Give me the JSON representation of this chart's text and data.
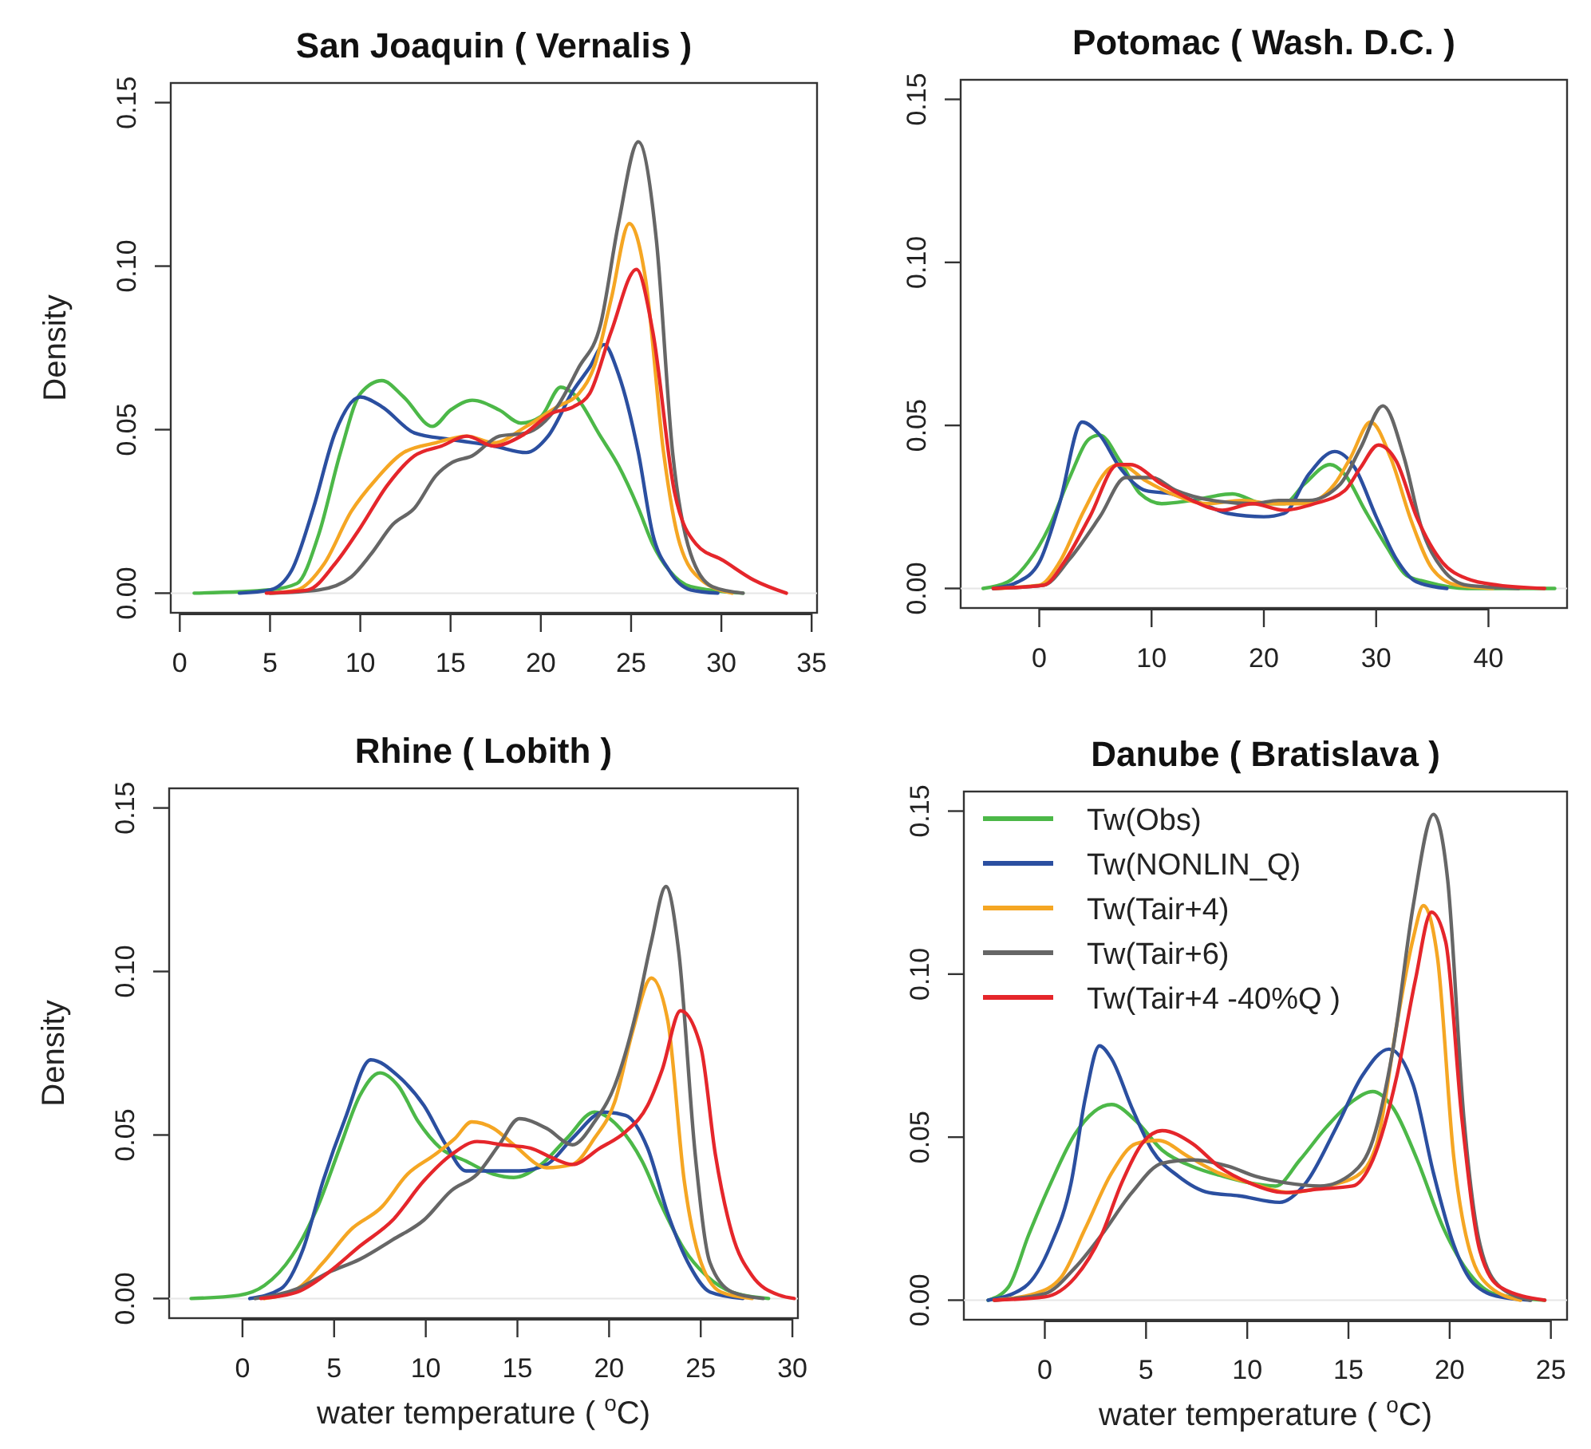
{
  "chart_data": [
    {
      "type": "line",
      "title": "San Joaquin ( Vernalis )",
      "ylabel": "Density",
      "xlim": [
        -0.5,
        35.3
      ],
      "ylim": [
        -0.006,
        0.156
      ],
      "xticks": [
        0,
        5,
        10,
        15,
        20,
        25,
        30,
        35
      ],
      "yticks": [
        {
          "value": 0,
          "label": "0.00"
        },
        {
          "value": 0.05,
          "label": "0.05"
        },
        {
          "value": 0.1,
          "label": "0.10"
        },
        {
          "value": 0.15,
          "label": "0.15"
        }
      ],
      "grid": false,
      "legend": false,
      "line_style": "solid",
      "ref_lines": [
        {
          "axis": "y",
          "value": 0,
          "color": "#e6e6e6"
        }
      ],
      "series": [
        {
          "color": "#4cb848",
          "x": [
            0.8,
            5,
            6.5,
            7.7,
            8.9,
            10,
            11.2,
            12.4,
            14,
            15,
            16.2,
            17.7,
            18.9,
            20,
            21.1,
            21.8,
            23.3,
            24.3,
            25.4,
            26.2,
            27.1,
            28.3,
            31.2
          ],
          "values": [
            0,
            0.001,
            0.003,
            0.018,
            0.043,
            0.061,
            0.065,
            0.06,
            0.051,
            0.056,
            0.059,
            0.056,
            0.052,
            0.054,
            0.063,
            0.061,
            0.048,
            0.039,
            0.026,
            0.015,
            0.007,
            0.002,
            0
          ]
        },
        {
          "color": "#2b4fa0",
          "x": [
            3.3,
            5,
            6.2,
            7.4,
            8.6,
            10,
            11.2,
            13,
            15,
            17.4,
            19.2,
            20.4,
            21.8,
            22.7,
            23.5,
            24.3,
            25.4,
            26.2,
            27.1,
            28.3,
            29.8
          ],
          "values": [
            0,
            0.001,
            0.007,
            0.026,
            0.049,
            0.06,
            0.057,
            0.049,
            0.047,
            0.045,
            0.043,
            0.048,
            0.062,
            0.069,
            0.076,
            0.067,
            0.043,
            0.018,
            0.007,
            0.001,
            0
          ]
        },
        {
          "color": "#f5a623",
          "x": [
            5,
            6.5,
            8,
            9.5,
            10.9,
            12.4,
            14.2,
            15.9,
            17.4,
            19.2,
            20.9,
            22.1,
            23,
            23.9,
            24.9,
            25.8,
            26.8,
            27.7,
            28.9,
            30.6
          ],
          "values": [
            0,
            0.001,
            0.009,
            0.025,
            0.035,
            0.043,
            0.046,
            0.048,
            0.046,
            0.051,
            0.057,
            0.061,
            0.07,
            0.09,
            0.113,
            0.096,
            0.043,
            0.015,
            0.004,
            0
          ]
        },
        {
          "color": "#666666",
          "x": [
            5,
            7.7,
            9.5,
            10.6,
            11.8,
            13,
            14.2,
            15.1,
            16.2,
            17.7,
            19.2,
            20.9,
            22.1,
            23.3,
            24.3,
            25.4,
            26.4,
            27.3,
            28.3,
            29.5,
            31.2
          ],
          "values": [
            0,
            0.001,
            0.005,
            0.012,
            0.021,
            0.026,
            0.036,
            0.04,
            0.042,
            0.048,
            0.049,
            0.057,
            0.069,
            0.082,
            0.113,
            0.138,
            0.108,
            0.043,
            0.012,
            0.002,
            0
          ]
        },
        {
          "color": "#e5262b",
          "x": [
            4.8,
            7.1,
            8.6,
            10,
            11.5,
            13,
            14.5,
            15.9,
            17.4,
            18.9,
            20.6,
            21.8,
            22.7,
            23.9,
            25.3,
            26.2,
            27.4,
            28.6,
            30.1,
            31.8,
            33.6
          ],
          "values": [
            0,
            0.001,
            0.009,
            0.02,
            0.033,
            0.042,
            0.045,
            0.048,
            0.045,
            0.048,
            0.055,
            0.057,
            0.061,
            0.08,
            0.099,
            0.08,
            0.031,
            0.015,
            0.01,
            0.004,
            0
          ]
        }
      ]
    },
    {
      "type": "line",
      "title": "Potomac ( Wash. D.C. )",
      "xlim": [
        -7,
        47
      ],
      "ylim": [
        -0.006,
        0.156
      ],
      "xticks": [
        0,
        10,
        20,
        30,
        40
      ],
      "yticks": [
        {
          "value": 0,
          "label": "0.00"
        },
        {
          "value": 0.05,
          "label": "0.05"
        },
        {
          "value": 0.1,
          "label": "0.10"
        },
        {
          "value": 0.15,
          "label": "0.15"
        }
      ],
      "grid": false,
      "legend": false,
      "line_style": "solid",
      "ref_lines": [
        {
          "axis": "y",
          "value": 0,
          "color": "#e6e6e6"
        }
      ],
      "series": [
        {
          "color": "#4cb848",
          "x": [
            -5,
            -2.8,
            -1,
            0.9,
            2.7,
            4.5,
            5.4,
            7.2,
            9,
            10.9,
            13.6,
            17.2,
            20,
            21.8,
            23.6,
            25.9,
            27.2,
            29,
            30.9,
            32.7,
            34.5,
            38.1,
            45.9
          ],
          "values": [
            0,
            0.002,
            0.008,
            0.019,
            0.034,
            0.046,
            0.047,
            0.039,
            0.029,
            0.026,
            0.027,
            0.029,
            0.026,
            0.026,
            0.032,
            0.038,
            0.035,
            0.024,
            0.013,
            0.004,
            0.002,
            0,
            0
          ]
        },
        {
          "color": "#2b4fa0",
          "x": [
            -4.1,
            -1.9,
            0,
            1.8,
            3.8,
            5.4,
            7.2,
            9.5,
            11.8,
            14.5,
            16.8,
            20,
            21.8,
            24,
            26.3,
            28.1,
            30,
            31.8,
            33.6,
            36.3
          ],
          "values": [
            0,
            0.002,
            0.008,
            0.026,
            0.051,
            0.047,
            0.037,
            0.03,
            0.029,
            0.026,
            0.023,
            0.022,
            0.023,
            0.035,
            0.042,
            0.037,
            0.022,
            0.009,
            0.002,
            0
          ]
        },
        {
          "color": "#f5a623",
          "x": [
            -4.1,
            0,
            1.8,
            4,
            6.3,
            7.2,
            9.5,
            11.8,
            15,
            18.1,
            20.9,
            23.6,
            26.3,
            27.7,
            29.5,
            31.3,
            33.1,
            35,
            37.2,
            40.4
          ],
          "values": [
            0,
            0.001,
            0.008,
            0.024,
            0.037,
            0.038,
            0.033,
            0.029,
            0.026,
            0.027,
            0.026,
            0.026,
            0.032,
            0.04,
            0.051,
            0.04,
            0.021,
            0.006,
            0.001,
            0
          ]
        },
        {
          "color": "#666666",
          "x": [
            -4.1,
            0.4,
            2.7,
            5.4,
            7.7,
            10,
            12.2,
            15.4,
            19,
            21.3,
            24,
            26.8,
            28.6,
            30.6,
            32.5,
            34,
            35.9,
            38.1,
            42.7
          ],
          "values": [
            0,
            0.001,
            0.009,
            0.022,
            0.034,
            0.034,
            0.03,
            0.027,
            0.026,
            0.027,
            0.027,
            0.032,
            0.043,
            0.056,
            0.04,
            0.019,
            0.006,
            0.001,
            0
          ]
        },
        {
          "color": "#e5262b",
          "x": [
            -4.1,
            0.4,
            2.2,
            4.5,
            7,
            8.1,
            10.9,
            13.6,
            16.3,
            19,
            21.8,
            24.5,
            27.2,
            28.6,
            30.2,
            31.8,
            33.6,
            35.9,
            38.1,
            40.9,
            45
          ],
          "values": [
            0,
            0.001,
            0.008,
            0.022,
            0.038,
            0.038,
            0.032,
            0.027,
            0.024,
            0.026,
            0.024,
            0.026,
            0.03,
            0.037,
            0.044,
            0.039,
            0.022,
            0.008,
            0.003,
            0.001,
            0
          ]
        }
      ]
    },
    {
      "type": "line",
      "title": "Rhine ( Lobith )",
      "ylabel": "Density",
      "xlabel": "water temperature ( $^{o}$C)",
      "xlim": [
        -4,
        30.3
      ],
      "ylim": [
        -0.006,
        0.156
      ],
      "xticks": [
        0,
        5,
        10,
        15,
        20,
        25,
        30
      ],
      "yticks": [
        {
          "value": 0,
          "label": "0.00"
        },
        {
          "value": 0.05,
          "label": "0.05"
        },
        {
          "value": 0.1,
          "label": "0.10"
        },
        {
          "value": 0.15,
          "label": "0.15"
        }
      ],
      "grid": false,
      "legend": false,
      "line_style": "solid",
      "ref_lines": [
        {
          "axis": "y",
          "value": 0,
          "color": "#e6e6e6"
        }
      ],
      "series": [
        {
          "color": "#4cb848",
          "x": [
            -2.8,
            -0.2,
            1.2,
            2.7,
            4.1,
            5.3,
            6.4,
            7.5,
            8.5,
            9.6,
            10.8,
            12.2,
            13.7,
            14.8,
            16.3,
            17.7,
            19.2,
            20.6,
            21.8,
            22.9,
            24.1,
            25.3,
            26.7,
            28.7
          ],
          "values": [
            0,
            0.001,
            0.004,
            0.013,
            0.028,
            0.046,
            0.062,
            0.069,
            0.065,
            0.054,
            0.046,
            0.042,
            0.038,
            0.037,
            0.041,
            0.049,
            0.057,
            0.052,
            0.042,
            0.028,
            0.015,
            0.007,
            0.002,
            0
          ]
        },
        {
          "color": "#2b4fa0",
          "x": [
            0.4,
            2.1,
            3.3,
            4.4,
            5.6,
            7,
            8.5,
            9.9,
            11.1,
            12.2,
            13.7,
            15.1,
            16.6,
            18,
            19.7,
            20.9,
            22.1,
            23.2,
            24.4,
            25.5,
            27.3
          ],
          "values": [
            0,
            0.003,
            0.015,
            0.036,
            0.055,
            0.073,
            0.068,
            0.059,
            0.047,
            0.039,
            0.039,
            0.039,
            0.041,
            0.049,
            0.057,
            0.056,
            0.046,
            0.026,
            0.01,
            0.002,
            0
          ]
        },
        {
          "color": "#f5a623",
          "x": [
            1.2,
            3,
            4.4,
            5.9,
            7.6,
            9,
            10.5,
            11.6,
            12.5,
            13.7,
            14.8,
            16.6,
            18,
            19.2,
            20.3,
            21.3,
            22.3,
            23.2,
            24.1,
            24.9,
            26.1,
            27.8
          ],
          "values": [
            0,
            0.003,
            0.011,
            0.021,
            0.028,
            0.038,
            0.044,
            0.049,
            0.054,
            0.052,
            0.047,
            0.04,
            0.041,
            0.049,
            0.06,
            0.082,
            0.098,
            0.085,
            0.036,
            0.013,
            0.002,
            0
          ]
        },
        {
          "color": "#666666",
          "x": [
            0.7,
            3,
            4.7,
            6.4,
            8.2,
            9.9,
            11.4,
            12.8,
            14,
            15.1,
            16.6,
            18,
            19.2,
            20.3,
            21.5,
            22.3,
            23.1,
            23.8,
            24.7,
            25.5,
            26.7,
            28.4
          ],
          "values": [
            0,
            0.003,
            0.008,
            0.012,
            0.018,
            0.024,
            0.033,
            0.038,
            0.047,
            0.055,
            0.052,
            0.047,
            0.054,
            0.065,
            0.088,
            0.109,
            0.126,
            0.106,
            0.044,
            0.011,
            0.002,
            0
          ]
        },
        {
          "color": "#e5262b",
          "x": [
            1,
            3,
            4.7,
            6.4,
            8.2,
            9.9,
            11.4,
            12.8,
            14.2,
            15.7,
            16.9,
            18,
            19.5,
            20.9,
            22.1,
            22.9,
            23.9,
            25,
            25.8,
            26.7,
            27.8,
            29.3,
            30.1
          ],
          "values": [
            0,
            0.002,
            0.008,
            0.016,
            0.024,
            0.036,
            0.044,
            0.048,
            0.047,
            0.046,
            0.043,
            0.041,
            0.046,
            0.051,
            0.059,
            0.07,
            0.088,
            0.077,
            0.044,
            0.02,
            0.007,
            0.001,
            0
          ]
        }
      ]
    },
    {
      "type": "line",
      "title": "Danube ( Bratislava )",
      "xlabel": "water temperature ( $^{o}$C)",
      "xlim": [
        -4,
        25.8
      ],
      "ylim": [
        -0.006,
        0.156
      ],
      "xticks": [
        0,
        5,
        10,
        15,
        20,
        25
      ],
      "yticks": [
        {
          "value": 0,
          "label": "0.00"
        },
        {
          "value": 0.05,
          "label": "0.05"
        },
        {
          "value": 0.1,
          "label": "0.10"
        },
        {
          "value": 0.15,
          "label": "0.15"
        }
      ],
      "grid": false,
      "legend": "top left",
      "line_style": "solid",
      "ref_lines": [
        {
          "axis": "y",
          "value": 0,
          "color": "#e6e6e6"
        }
      ],
      "series": [
        {
          "name": "Tw(Obs)",
          "color": "#4cb848",
          "x": [
            -2.8,
            -1.8,
            -0.8,
            0.3,
            1.5,
            3.3,
            4.5,
            5.8,
            7.3,
            8.8,
            10.1,
            11.4,
            12.6,
            13.9,
            15.2,
            16.2,
            17.2,
            18.4,
            19.7,
            21,
            22.2,
            24.7
          ],
          "values": [
            0,
            0.004,
            0.02,
            0.036,
            0.051,
            0.06,
            0.055,
            0.046,
            0.041,
            0.038,
            0.036,
            0.035,
            0.043,
            0.053,
            0.061,
            0.064,
            0.059,
            0.043,
            0.022,
            0.008,
            0.002,
            0
          ]
        },
        {
          "name": "Tw(NONLIN_Q)",
          "color": "#2b4fa0",
          "x": [
            -2.8,
            -1,
            0.3,
            1.3,
            2,
            2.7,
            3.3,
            4.3,
            5.3,
            6.6,
            8.1,
            9.6,
            11.6,
            12.9,
            14.4,
            15.7,
            17,
            18.2,
            19.2,
            20.2,
            21.2,
            22.5,
            24
          ],
          "values": [
            0,
            0.004,
            0.017,
            0.036,
            0.062,
            0.078,
            0.074,
            0.059,
            0.046,
            0.038,
            0.033,
            0.032,
            0.03,
            0.036,
            0.053,
            0.069,
            0.077,
            0.066,
            0.039,
            0.017,
            0.005,
            0.001,
            0
          ]
        },
        {
          "name": "Tw(Tair+4)",
          "color": "#f5a623",
          "x": [
            -2.5,
            -0.5,
            0.8,
            2,
            3.3,
            4.5,
            5.6,
            7.1,
            8.6,
            10.1,
            12.1,
            13.9,
            15.4,
            16.4,
            17.4,
            18.2,
            18.7,
            19.4,
            20.2,
            21,
            22,
            23.5
          ],
          "values": [
            0,
            0.002,
            0.007,
            0.022,
            0.039,
            0.048,
            0.049,
            0.044,
            0.039,
            0.036,
            0.033,
            0.035,
            0.038,
            0.048,
            0.085,
            0.111,
            0.121,
            0.105,
            0.044,
            0.015,
            0.004,
            0
          ]
        },
        {
          "name": "Tw(Tair+6)",
          "color": "#666666",
          "x": [
            -2.5,
            0,
            1.5,
            2.8,
            4.3,
            5.8,
            7.3,
            9.1,
            10.4,
            11.9,
            13.6,
            15.2,
            16.2,
            17.2,
            18.2,
            19.2,
            19.9,
            20.7,
            21.5,
            22.5,
            24
          ],
          "values": [
            0,
            0.002,
            0.01,
            0.02,
            0.033,
            0.042,
            0.043,
            0.041,
            0.038,
            0.036,
            0.035,
            0.039,
            0.049,
            0.077,
            0.121,
            0.149,
            0.129,
            0.056,
            0.017,
            0.004,
            0
          ]
        },
        {
          "name": "Tw(Tair+4 -40%Q )",
          "color": "#e5262b",
          "x": [
            -2.5,
            0,
            1.5,
            2.8,
            3.8,
            4.8,
            5.8,
            7.3,
            8.6,
            10.1,
            11.9,
            13.4,
            15.2,
            16.2,
            17.4,
            18.3,
            19.1,
            19.8,
            20.6,
            21.5,
            22.5,
            24.7
          ],
          "values": [
            0,
            0.001,
            0.007,
            0.02,
            0.036,
            0.048,
            0.052,
            0.048,
            0.041,
            0.036,
            0.033,
            0.034,
            0.035,
            0.043,
            0.069,
            0.098,
            0.119,
            0.11,
            0.056,
            0.015,
            0.004,
            0
          ]
        }
      ]
    }
  ]
}
